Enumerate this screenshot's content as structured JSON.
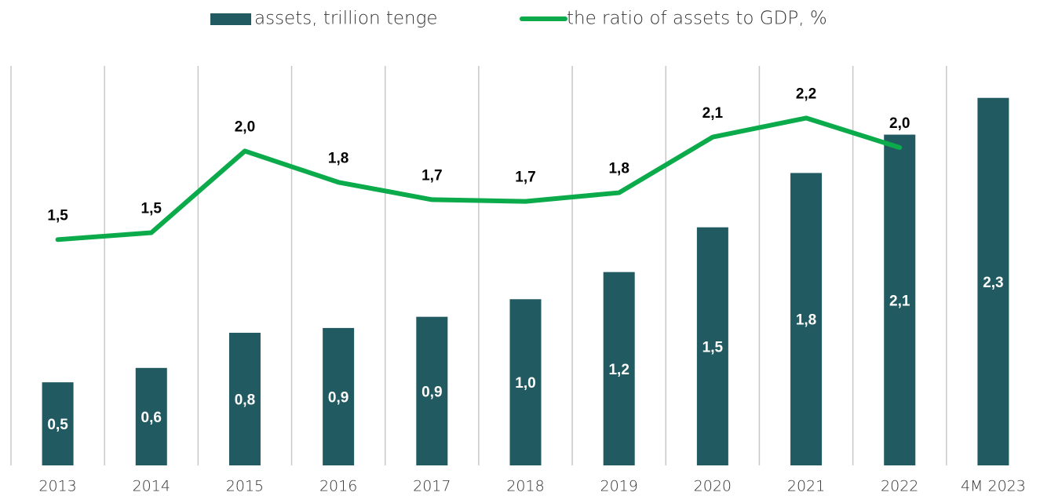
{
  "chart_data": {
    "type": "bar-line",
    "categories": [
      "2013",
      "2014",
      "2015",
      "2016",
      "2017",
      "2018",
      "2019",
      "2020",
      "2021",
      "2022",
      "4M 2023"
    ],
    "series": [
      {
        "name": "assets, trillion tenge",
        "type": "bar",
        "color": "#215a60",
        "values": [
          0.52,
          0.61,
          0.83,
          0.86,
          0.93,
          1.04,
          1.21,
          1.49,
          1.83,
          2.07,
          2.3
        ],
        "value_labels": [
          "0,5",
          "0,6",
          "0,8",
          "0,9",
          "0,9",
          "1,0",
          "1,2",
          "1,5",
          "1,8",
          "2,1",
          "2,3"
        ]
      },
      {
        "name": "the ratio of assets to GDP, %",
        "type": "line",
        "axis": "y2",
        "color": "#0bab4b",
        "values": [
          1.5,
          1.54,
          2.01,
          1.83,
          1.73,
          1.72,
          1.77,
          2.09,
          2.2,
          2.03,
          null
        ],
        "value_labels": [
          "1,5",
          "1,5",
          "2,0",
          "1,8",
          "1,7",
          "1,7",
          "1,8",
          "2,1",
          "2,2",
          "2,0",
          null
        ]
      }
    ],
    "ylim": [
      0,
      2.5
    ],
    "y2lim": [
      0.2,
      2.5
    ],
    "legend": "top"
  }
}
